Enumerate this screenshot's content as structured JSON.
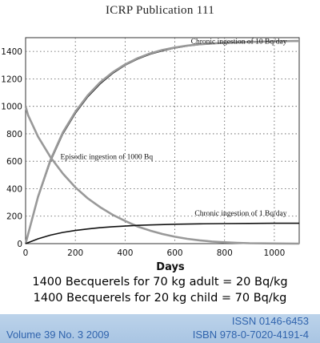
{
  "header": {
    "publication": "ICRP Publication 111"
  },
  "chart_data": {
    "type": "line",
    "xlabel": "Days",
    "ylabel": "",
    "xlim": [
      0,
      1100
    ],
    "ylim": [
      0,
      1500
    ],
    "x_ticks": [
      0,
      200,
      400,
      600,
      800,
      1000
    ],
    "y_ticks": [
      0,
      200,
      400,
      600,
      800,
      1000,
      1200,
      1400
    ],
    "grid": "dotted",
    "annotations": [
      {
        "text": "Chronic ingestion of 10 Bq/day",
        "x": 1050,
        "y": 1455
      },
      {
        "text": "Episodic ingestion of 1000 Bq",
        "x": 140,
        "y": 615
      },
      {
        "text": "Chronic ingestion of 1 Bq/day",
        "x": 1050,
        "y": 205
      }
    ],
    "series": [
      {
        "color": "#111111",
        "points": [
          [
            0,
            0
          ],
          [
            50,
            335
          ],
          [
            100,
            600
          ],
          [
            150,
            800
          ],
          [
            200,
            950
          ],
          [
            250,
            1070
          ],
          [
            300,
            1165
          ],
          [
            350,
            1240
          ],
          [
            400,
            1300
          ],
          [
            450,
            1345
          ],
          [
            500,
            1380
          ],
          [
            550,
            1405
          ],
          [
            600,
            1425
          ],
          [
            650,
            1440
          ],
          [
            700,
            1450
          ],
          [
            800,
            1462
          ],
          [
            900,
            1468
          ],
          [
            1000,
            1472
          ],
          [
            1100,
            1475
          ]
        ]
      },
      {
        "color": "#999999",
        "points": [
          [
            0,
            0
          ],
          [
            50,
            340
          ],
          [
            100,
            610
          ],
          [
            150,
            810
          ],
          [
            200,
            960
          ],
          [
            250,
            1080
          ],
          [
            300,
            1175
          ],
          [
            350,
            1248
          ],
          [
            400,
            1305
          ],
          [
            450,
            1350
          ],
          [
            500,
            1385
          ],
          [
            550,
            1410
          ],
          [
            600,
            1428
          ],
          [
            650,
            1442
          ],
          [
            700,
            1452
          ],
          [
            800,
            1463
          ],
          [
            900,
            1469
          ],
          [
            1000,
            1473
          ],
          [
            1100,
            1476
          ]
        ]
      },
      {
        "color": "#999999",
        "points": [
          [
            0,
            1000
          ],
          [
            10,
            935
          ],
          [
            50,
            780
          ],
          [
            100,
            630
          ],
          [
            150,
            510
          ],
          [
            200,
            410
          ],
          [
            250,
            330
          ],
          [
            300,
            265
          ],
          [
            350,
            210
          ],
          [
            400,
            165
          ],
          [
            450,
            125
          ],
          [
            500,
            95
          ],
          [
            550,
            70
          ],
          [
            600,
            50
          ],
          [
            650,
            35
          ],
          [
            700,
            24
          ],
          [
            750,
            15
          ],
          [
            800,
            10
          ],
          [
            850,
            6
          ],
          [
            900,
            3
          ],
          [
            1000,
            1
          ],
          [
            1100,
            0
          ]
        ]
      },
      {
        "color": "#111111",
        "points": [
          [
            0,
            0
          ],
          [
            50,
            35
          ],
          [
            100,
            62
          ],
          [
            150,
            82
          ],
          [
            200,
            96
          ],
          [
            250,
            107
          ],
          [
            300,
            116
          ],
          [
            350,
            123
          ],
          [
            400,
            128
          ],
          [
            450,
            133
          ],
          [
            500,
            136
          ],
          [
            600,
            141
          ],
          [
            700,
            144
          ],
          [
            800,
            146
          ],
          [
            900,
            147
          ],
          [
            1000,
            148
          ],
          [
            1100,
            148
          ]
        ]
      }
    ]
  },
  "captions": {
    "line1": "1400 Becquerels for 70 kg adult = 20 Bq/kg",
    "line2": "1400 Becquerels for 20 kg child = 70 Bq/kg"
  },
  "footer": {
    "issn": "ISSN 0146-6453",
    "volume": "Volume 39 No. 3 2009",
    "isbn": "ISBN 978-0-7020-4191-4"
  }
}
